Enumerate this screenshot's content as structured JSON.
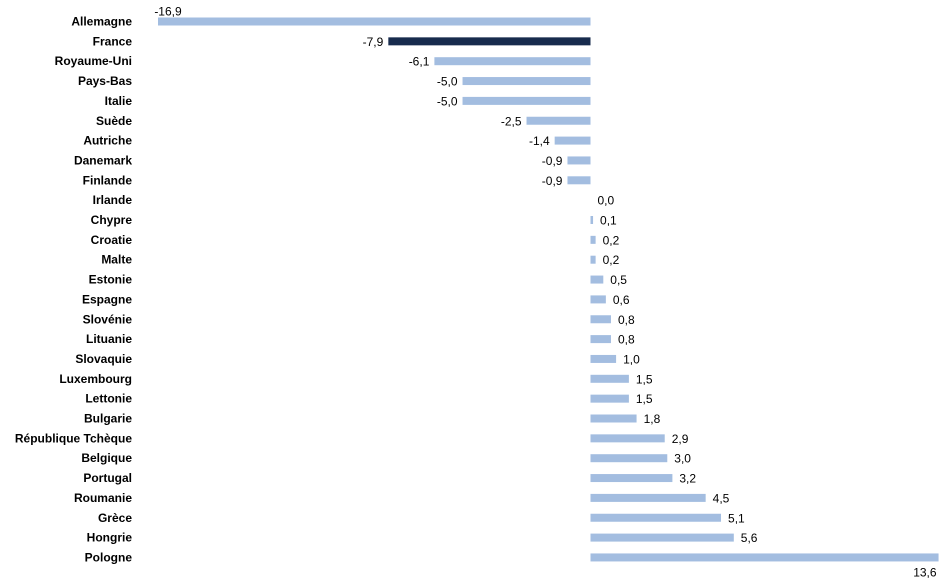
{
  "chart_data": {
    "type": "bar",
    "orientation": "horizontal",
    "categories": [
      "Allemagne",
      "France",
      "Royaume-Uni",
      "Pays-Bas",
      "Italie",
      "Suède",
      "Autriche",
      "Danemark",
      "Finlande",
      "Irlande",
      "Chypre",
      "Croatie",
      "Malte",
      "Estonie",
      "Espagne",
      "Slovénie",
      "Lituanie",
      "Slovaquie",
      "Luxembourg",
      "Lettonie",
      "Bulgarie",
      "République Tchèque",
      "Belgique",
      "Portugal",
      "Roumanie",
      "Grèce",
      "Hongrie",
      "Pologne"
    ],
    "values": [
      -16.9,
      -7.9,
      -6.1,
      -5.0,
      -5.0,
      -2.5,
      -1.4,
      -0.9,
      -0.9,
      0.0,
      0.1,
      0.2,
      0.2,
      0.5,
      0.6,
      0.8,
      0.8,
      1.0,
      1.5,
      1.5,
      1.8,
      2.9,
      3.0,
      3.2,
      4.5,
      5.1,
      5.6,
      13.6
    ],
    "value_labels": [
      "-16,9",
      "-7,9",
      "-6,1",
      "-5,0",
      "-5,0",
      "-2,5",
      "-1,4",
      "-0,9",
      "-0,9",
      "0,0",
      "0,1",
      "0,2",
      "0,2",
      "0,5",
      "0,6",
      "0,8",
      "0,8",
      "1,0",
      "1,5",
      "1,5",
      "1,8",
      "2,9",
      "3,0",
      "3,2",
      "4,5",
      "5,1",
      "5,6",
      "13,6"
    ],
    "highlight_category": "France",
    "colors": {
      "default": "#a3bde0",
      "highlight": "#172b4d"
    },
    "grid": false,
    "legend": "none"
  }
}
